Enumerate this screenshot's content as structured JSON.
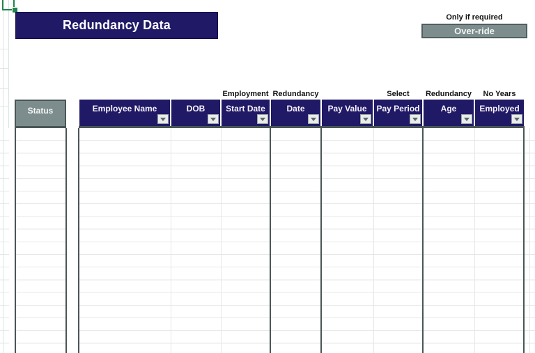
{
  "title": "Redundancy Data",
  "override_section": {
    "note": "Only if required",
    "button_label": "Over-ride"
  },
  "table": {
    "status_header": "Status",
    "columns": [
      {
        "group": "",
        "label": "Employee Name",
        "has_filter": true
      },
      {
        "group": "",
        "label": "DOB",
        "has_filter": true
      },
      {
        "group": "Employment",
        "label": "Start Date",
        "has_filter": true
      },
      {
        "group": "Redundancy",
        "label": "Date",
        "has_filter": true
      },
      {
        "group": "",
        "label": "Pay Value",
        "has_filter": true
      },
      {
        "group": "Select",
        "label": "Pay Period",
        "has_filter": true
      },
      {
        "group": "Redundancy",
        "label": "Age",
        "has_filter": true
      },
      {
        "group": "No Years",
        "label": "Employed",
        "has_filter": true
      }
    ],
    "rows": []
  },
  "icons": {
    "filter_dropdown": "chevron-down",
    "selection_fill_handle": "drag-handle"
  },
  "colors": {
    "header_navy": "#201966",
    "status_gray": "#7d8d8d",
    "selection_green": "#21834a",
    "grid_dark": "#4a5656",
    "grid_light": "#e7e7e7"
  }
}
